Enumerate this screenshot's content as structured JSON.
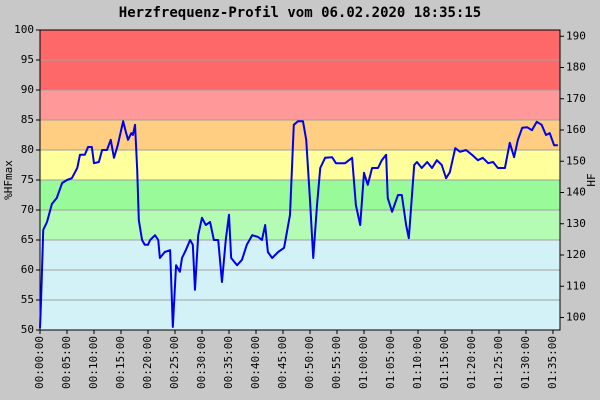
{
  "chart_data": {
    "type": "line",
    "title": "Herzfrequenz-Profil vom 06.02.2020 18:35:15",
    "ylabel": "%HFmax",
    "y2label": "HF",
    "x": [
      0,
      0.2,
      0.6,
      1.3,
      2.2,
      3.1,
      4.1,
      5,
      5.9,
      6.9,
      7.4,
      8.3,
      8.9,
      9.6,
      10,
      10.9,
      11.5,
      12.4,
      13.1,
      13.7,
      14.4,
      15.4,
      15.9,
      16.3,
      16.9,
      17.2,
      17.6,
      18,
      18.3,
      18.9,
      19.4,
      20,
      20.4,
      21.3,
      21.9,
      22.2,
      23.1,
      24.1,
      24.6,
      25.2,
      25.9,
      26.3,
      27,
      27.8,
      28.3,
      28.7,
      29.3,
      30,
      30.7,
      31.5,
      32.2,
      33,
      33.7,
      34.4,
      35,
      35.4,
      36.5,
      37.4,
      38.3,
      39.3,
      40.4,
      41.1,
      41.7,
      42.2,
      43,
      44.1,
      45.2,
      46.3,
      47,
      47.8,
      48.7,
      49.3,
      50,
      50.6,
      51.3,
      51.9,
      52.8,
      54.1,
      54.8,
      56.5,
      57.8,
      58.5,
      59.3,
      60,
      60.7,
      61.5,
      62.6,
      63.3,
      64.1,
      64.4,
      65.2,
      66.3,
      67,
      67.8,
      68.3,
      69.3,
      69.8,
      70.7,
      71.7,
      72.6,
      73.5,
      74.4,
      75.2,
      75.9,
      76.9,
      77.8,
      78.9,
      80,
      81.1,
      82,
      83,
      83.9,
      84.8,
      86.1,
      87,
      87.8,
      88.5,
      89.3,
      90.2,
      91.1,
      92,
      92.9,
      93.7,
      94.4,
      95.2,
      95.9
    ],
    "series": [
      {
        "color": "#0000ee",
        "values": [
          50.3,
          55,
          66.7,
          68,
          71,
          72,
          74.5,
          75,
          75.3,
          77,
          79.2,
          79.2,
          80.5,
          80.5,
          77.8,
          78,
          80,
          80,
          81.7,
          78.7,
          80.8,
          84.8,
          83,
          81.7,
          82.8,
          82.5,
          84.2,
          76.7,
          68.3,
          65,
          64.2,
          64.2,
          65,
          65.8,
          65,
          62,
          63,
          63.3,
          50.5,
          60.8,
          59.7,
          62,
          63.3,
          65,
          64.2,
          56.7,
          65.8,
          68.7,
          67.5,
          68,
          65,
          65,
          58,
          65,
          69.2,
          62,
          60.8,
          61.7,
          64.2,
          65.8,
          65.5,
          65,
          67.5,
          63,
          62,
          63,
          63.7,
          69.2,
          84.2,
          84.8,
          84.8,
          81.7,
          71.7,
          62,
          70.8,
          77,
          78.7,
          78.8,
          77.8,
          77.8,
          78.7,
          70.8,
          67.5,
          76.2,
          74.2,
          77,
          77,
          78.3,
          79.2,
          72,
          69.7,
          72.5,
          72.5,
          67.5,
          65.3,
          77.5,
          78,
          77,
          78,
          77,
          78.3,
          77.5,
          75.3,
          76.3,
          80.3,
          79.7,
          80,
          79.2,
          78.3,
          78.7,
          77.8,
          78,
          77,
          77,
          81.2,
          78.8,
          81.7,
          83.7,
          83.8,
          83.3,
          84.7,
          84.2,
          82.5,
          82.8,
          80.8,
          80.8
        ]
      }
    ],
    "xlim": [
      0,
      96.3
    ],
    "xticks": [
      {
        "value": 0,
        "label": "00:00:00"
      },
      {
        "value": 5,
        "label": "00:05:00"
      },
      {
        "value": 10,
        "label": "00:10:00"
      },
      {
        "value": 15,
        "label": "00:15:00"
      },
      {
        "value": 20,
        "label": "00:20:00"
      },
      {
        "value": 25,
        "label": "00:25:00"
      },
      {
        "value": 30,
        "label": "00:30:00"
      },
      {
        "value": 35,
        "label": "00:35:00"
      },
      {
        "value": 40,
        "label": "00:40:00"
      },
      {
        "value": 45,
        "label": "00:45:00"
      },
      {
        "value": 50,
        "label": "00:50:00"
      },
      {
        "value": 55,
        "label": "00:55:00"
      },
      {
        "value": 60,
        "label": "01:00:00"
      },
      {
        "value": 65,
        "label": "01:05:00"
      },
      {
        "value": 70,
        "label": "01:10:00"
      },
      {
        "value": 75,
        "label": "01:15:00"
      },
      {
        "value": 80,
        "label": "01:20:00"
      },
      {
        "value": 85,
        "label": "01:25:00"
      },
      {
        "value": 90,
        "label": "01:30:00"
      },
      {
        "value": 95,
        "label": "01:35:00"
      }
    ],
    "ylim": [
      50,
      100
    ],
    "yticks": [
      50,
      55,
      60,
      65,
      70,
      75,
      80,
      85,
      90,
      95,
      100
    ],
    "y2lim": [
      96,
      192
    ],
    "y2ticks": [
      100,
      110,
      120,
      130,
      140,
      150,
      160,
      170,
      180,
      190
    ],
    "grid": true,
    "zones": [
      {
        "from": 50,
        "to": 65,
        "color": "#d2f2f8"
      },
      {
        "from": 65,
        "to": 70,
        "color": "#b4fcb4"
      },
      {
        "from": 70,
        "to": 75,
        "color": "#98fa98"
      },
      {
        "from": 75,
        "to": 80,
        "color": "#ffff9c"
      },
      {
        "from": 80,
        "to": 85,
        "color": "#ffce82"
      },
      {
        "from": 85,
        "to": 90,
        "color": "#ff9898"
      },
      {
        "from": 90,
        "to": 100,
        "color": "#ff6868"
      }
    ]
  }
}
